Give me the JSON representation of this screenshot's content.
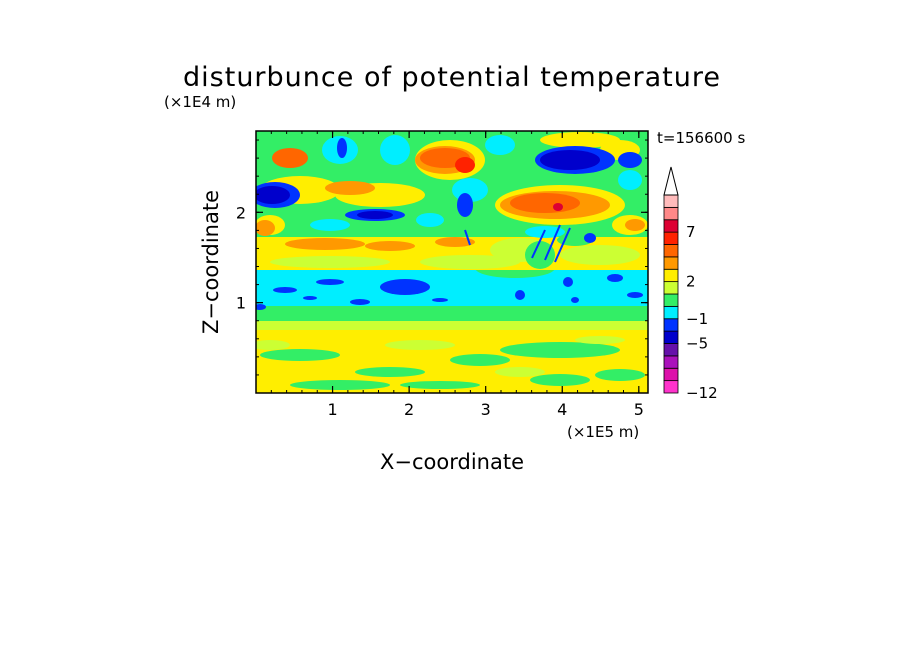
{
  "chart_data": {
    "type": "heatmap",
    "title": "disturbunce of potential temperature",
    "xlabel": "X−coordinate",
    "ylabel": "Z−coordinate",
    "x_unit": "(×1E5 m)",
    "y_unit": "(×1E4 m)",
    "time_label": "t=156600 s",
    "xlim": [
      0,
      5.12
    ],
    "ylim": [
      0,
      2.9
    ],
    "x_ticks": [
      1,
      2,
      3,
      4,
      5
    ],
    "y_ticks": [
      1,
      2
    ],
    "x_tick_labels": [
      "1",
      "2",
      "3",
      "4",
      "5"
    ],
    "y_tick_labels": [
      "1",
      "2"
    ],
    "colorbar": {
      "levels_low_to_high": [
        "#ff33cc",
        "#dd11aa",
        "#aa11bb",
        "#6611aa",
        "#0000cc",
        "#0033ff",
        "#00eeff",
        "#33ee66",
        "#ccff33",
        "#ffee00",
        "#ff9900",
        "#ff6600",
        "#ff2200",
        "#dd0033",
        "#ff8888",
        "#ffbbbb"
      ],
      "labels": [
        {
          "text": "−12",
          "value": -12
        },
        {
          "text": "−5",
          "value": -5
        },
        {
          "text": "−1",
          "value": -1
        },
        {
          "text": "2",
          "value": 2
        },
        {
          "text": "7",
          "value": 7
        }
      ],
      "extend_top": true
    },
    "bands": [
      {
        "z_from": 0.0,
        "z_to": 0.75,
        "level": "weak positive (0 to 1)",
        "color": "#ffee00"
      },
      {
        "z_from": 0.75,
        "z_to": 0.9,
        "level": "near zero",
        "color": "#33ee66"
      },
      {
        "z_from": 0.9,
        "z_to": 1.45,
        "level": "negative (−1 to −2)",
        "color": "#00eeff"
      },
      {
        "z_from": 1.45,
        "z_to": 1.95,
        "level": "positive (1 to 2)",
        "color": "#ccff33"
      },
      {
        "z_from": 1.95,
        "z_to": 2.9,
        "level": "mixed, strong anomalies",
        "color": "#33ee66"
      }
    ],
    "anomalies": [
      {
        "x": 0.35,
        "z": 2.55,
        "sign": "positive",
        "color": "#ff6600"
      },
      {
        "x": 0.25,
        "z": 2.15,
        "sign": "negative",
        "color": "#0000cc"
      },
      {
        "x": 2.5,
        "z": 2.6,
        "sign": "positive",
        "color": "#ff2200"
      },
      {
        "x": 4.1,
        "z": 2.6,
        "sign": "negative",
        "color": "#0000cc"
      },
      {
        "x": 3.8,
        "z": 2.1,
        "sign": "positive",
        "color": "#ff6600"
      },
      {
        "x": 1.5,
        "z": 1.1,
        "sign": "negative",
        "color": "#0033ff"
      },
      {
        "x": 1.5,
        "z": 2.0,
        "sign": "negative",
        "color": "#0000cc"
      }
    ]
  }
}
